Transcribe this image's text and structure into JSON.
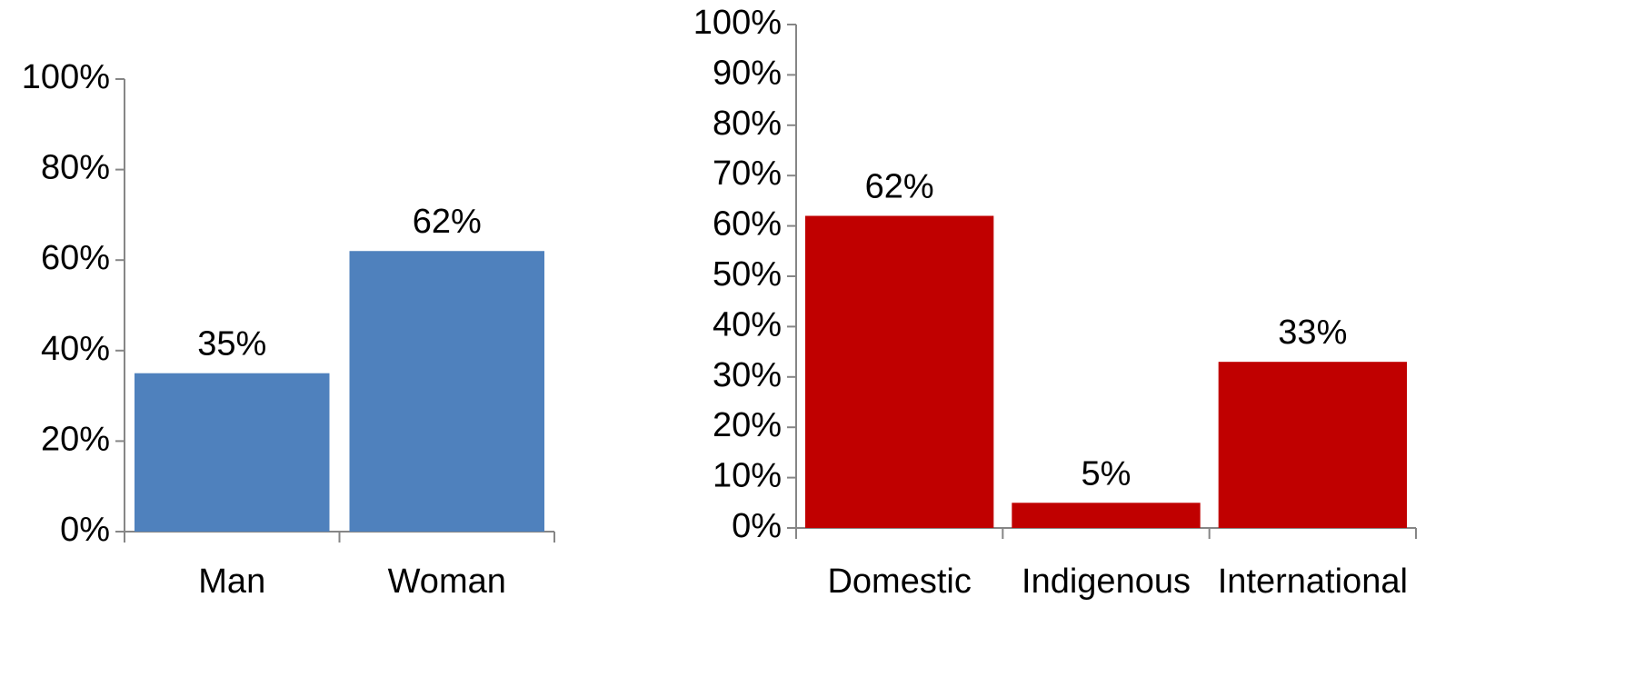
{
  "chart_data": [
    {
      "type": "bar",
      "categories": [
        "Man",
        "Woman"
      ],
      "values": [
        35,
        62
      ],
      "data_labels": [
        "35%",
        "62%"
      ],
      "ylim": [
        0,
        100
      ],
      "yticks": [
        0,
        20,
        40,
        60,
        80,
        100
      ],
      "ytick_labels": [
        "0%",
        "20%",
        "40%",
        "60%",
        "80%",
        "100%"
      ],
      "grid": false,
      "color": "#4F81BD"
    },
    {
      "type": "bar",
      "categories": [
        "Domestic",
        "Indigenous",
        "International"
      ],
      "values": [
        62,
        5,
        33
      ],
      "data_labels": [
        "62%",
        "5%",
        "33%"
      ],
      "ylim": [
        0,
        100
      ],
      "yticks": [
        0,
        10,
        20,
        30,
        40,
        50,
        60,
        70,
        80,
        90,
        100
      ],
      "ytick_labels": [
        "0%",
        "10%",
        "20%",
        "30%",
        "40%",
        "50%",
        "60%",
        "70%",
        "80%",
        "90%",
        "100%"
      ],
      "grid": false,
      "color": "#C00000"
    }
  ]
}
